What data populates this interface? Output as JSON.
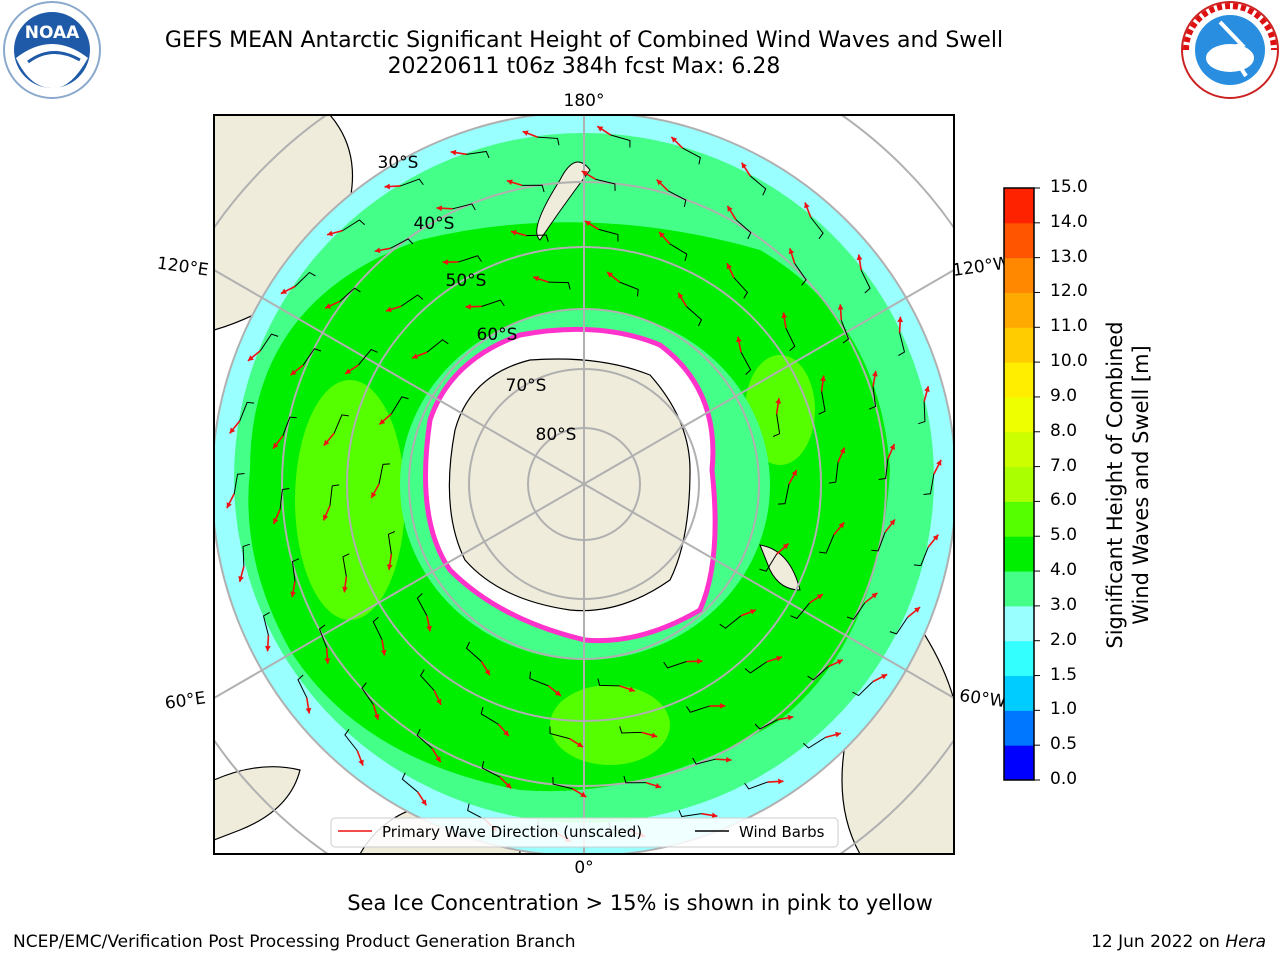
{
  "title_line1": "GEFS MEAN Antarctic Significant Height of Combined Wind Waves and Swell",
  "title_line2": "20220611 t06z 384h fcst   Max: 6.28",
  "logos": {
    "left": "noaa-logo",
    "right": "nws-logo",
    "left_text": "NOAA",
    "right_text": "NATIONAL WEATHER SERVICE"
  },
  "map": {
    "projection": "south-polar-stereographic",
    "lon_labels": {
      "top": "180°",
      "bottom": "0°",
      "left_upper": "120°E",
      "right_upper": "120°W",
      "left_lower": "60°E",
      "right_lower": "60°W"
    },
    "lat_labels": [
      "30°S",
      "40°S",
      "50°S",
      "60°S",
      "70°S",
      "80°S"
    ],
    "colors": {
      "land": "#efecdc",
      "ice": "#ffffff",
      "ice_edge": "#ff33cc",
      "wave_arrow": "#ee1111",
      "barb": "#000000",
      "grid": "#b0b0b0"
    }
  },
  "legend": {
    "wave": "Primary Wave Direction (unscaled)",
    "barb": "Wind Barbs"
  },
  "colorbar": {
    "label_line1": "Significant Height of Combined",
    "label_line2": "Wind Waves and Swell [m]",
    "levels": [
      "0.0",
      "0.5",
      "1.0",
      "1.5",
      "2.0",
      "3.0",
      "4.0",
      "5.0",
      "6.0",
      "7.0",
      "8.0",
      "9.0",
      "10.0",
      "11.0",
      "12.0",
      "13.0",
      "14.0",
      "15.0"
    ],
    "colors": [
      "#0000ff",
      "#0077ff",
      "#00ccff",
      "#33ffff",
      "#99ffff",
      "#44ff88",
      "#00ee00",
      "#55ff00",
      "#aaff00",
      "#ccff00",
      "#eeff00",
      "#ffee00",
      "#ffcc00",
      "#ffaa00",
      "#ff8800",
      "#ff5500",
      "#ff2200"
    ]
  },
  "note": "Sea Ice Concentration > 15% is shown in pink to yellow",
  "footer_left": "NCEP/EMC/Verification Post Processing Product Generation Branch",
  "footer_date": "12 Jun 2022 on",
  "footer_host": "Hera"
}
